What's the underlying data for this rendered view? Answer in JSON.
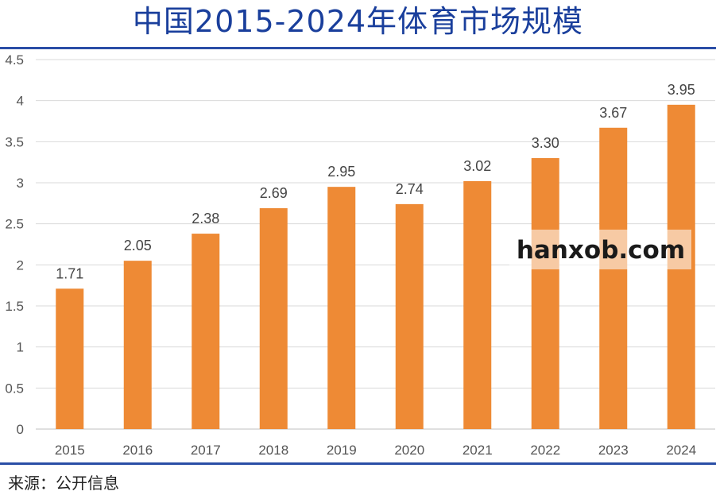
{
  "title": "中国2015-2024年体育市场规模",
  "source": "来源：公开信息",
  "watermark": "hanxob.com",
  "colors": {
    "bar": "#ee8a35",
    "grid": "#d9d9d9",
    "title": "#1a3f9c",
    "rule": "#2a4ea6"
  },
  "chart_data": {
    "type": "bar",
    "categories": [
      "2015",
      "2016",
      "2017",
      "2018",
      "2019",
      "2020",
      "2021",
      "2022",
      "2023",
      "2024"
    ],
    "values": [
      1.71,
      2.05,
      2.38,
      2.69,
      2.95,
      2.74,
      3.02,
      3.3,
      3.67,
      3.95
    ],
    "value_labels": [
      "1.71",
      "2.05",
      "2.38",
      "2.69",
      "2.95",
      "2.74",
      "3.02",
      "3.30",
      "3.67",
      "3.95"
    ],
    "y_ticks": [
      "0",
      "0.5",
      "1",
      "1.5",
      "2",
      "2.5",
      "3",
      "3.5",
      "4",
      "4.5"
    ],
    "ylim": [
      0,
      4.5
    ],
    "grid": true,
    "legend": "none"
  }
}
